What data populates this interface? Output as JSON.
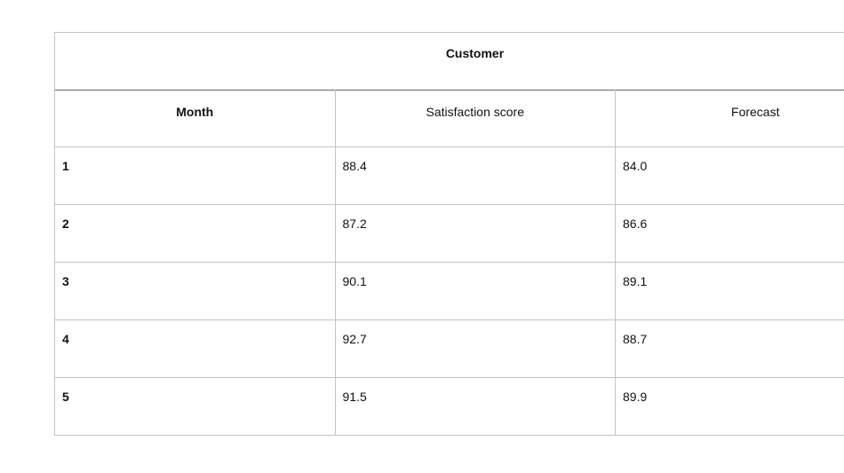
{
  "table": {
    "title": "Customer",
    "columns": [
      "Month",
      "Satisfaction score",
      "Forecast"
    ],
    "rows": [
      [
        "1",
        "88.4",
        "84.0"
      ],
      [
        "2",
        "87.2",
        "86.6"
      ],
      [
        "3",
        "90.1",
        "89.1"
      ],
      [
        "4",
        "92.7",
        "88.7"
      ],
      [
        "5",
        "91.5",
        "89.9"
      ]
    ]
  }
}
